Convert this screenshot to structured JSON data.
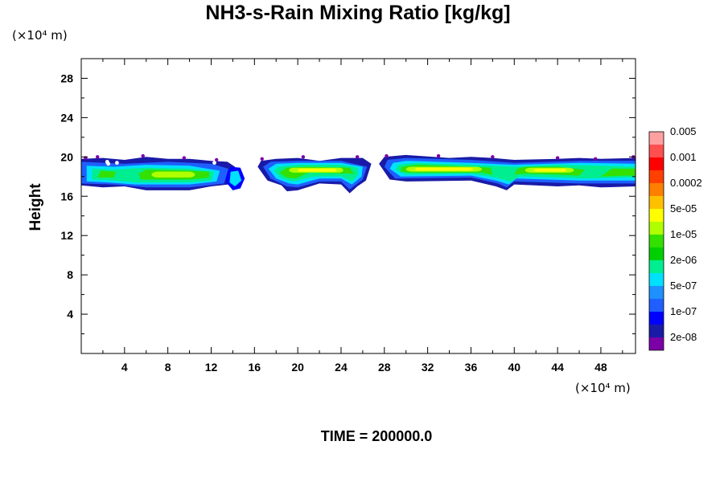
{
  "chart_data": {
    "type": "contour",
    "title": "NH3-s-Rain Mixing Ratio [kg/kg]",
    "xlabel": "",
    "ylabel": "Height",
    "x_unit": "(×10⁴ m)",
    "y_unit": "(×10⁴ m)",
    "xlim": [
      0,
      51.2
    ],
    "ylim": [
      0,
      30
    ],
    "x_ticks": [
      "4",
      "8",
      "12",
      "16",
      "20",
      "24",
      "28",
      "32",
      "36",
      "40",
      "44",
      "48"
    ],
    "y_ticks": [
      "4",
      "8",
      "12",
      "16",
      "20",
      "24",
      "28"
    ],
    "time_label": "TIME = 200000.0",
    "colorbar": {
      "colors": [
        "#7b00a8",
        "#1a1aa8",
        "#0000ff",
        "#1f5fff",
        "#1e90ff",
        "#00e0ff",
        "#00ee90",
        "#00d000",
        "#33e000",
        "#b0ff00",
        "#ffff00",
        "#ffc000",
        "#ff8000",
        "#ff4000",
        "#ff0000",
        "#ff5050",
        "#ffa0a0"
      ],
      "labels": [
        "2e-08",
        "1e-07",
        "5e-07",
        "2e-06",
        "1e-05",
        "5e-05",
        "0.0002",
        "0.001",
        "0.005"
      ]
    },
    "layer": {
      "y_range": [
        16.5,
        20
      ],
      "segments": [
        {
          "x": [
            0,
            15
          ],
          "peak": "green"
        },
        {
          "x": [
            16.5,
            26
          ],
          "peak": "yellow"
        },
        {
          "x": [
            27.5,
            39
          ],
          "peak": "yellow"
        },
        {
          "x": [
            39,
            51.2
          ],
          "peak": "yellow-green"
        }
      ]
    }
  }
}
